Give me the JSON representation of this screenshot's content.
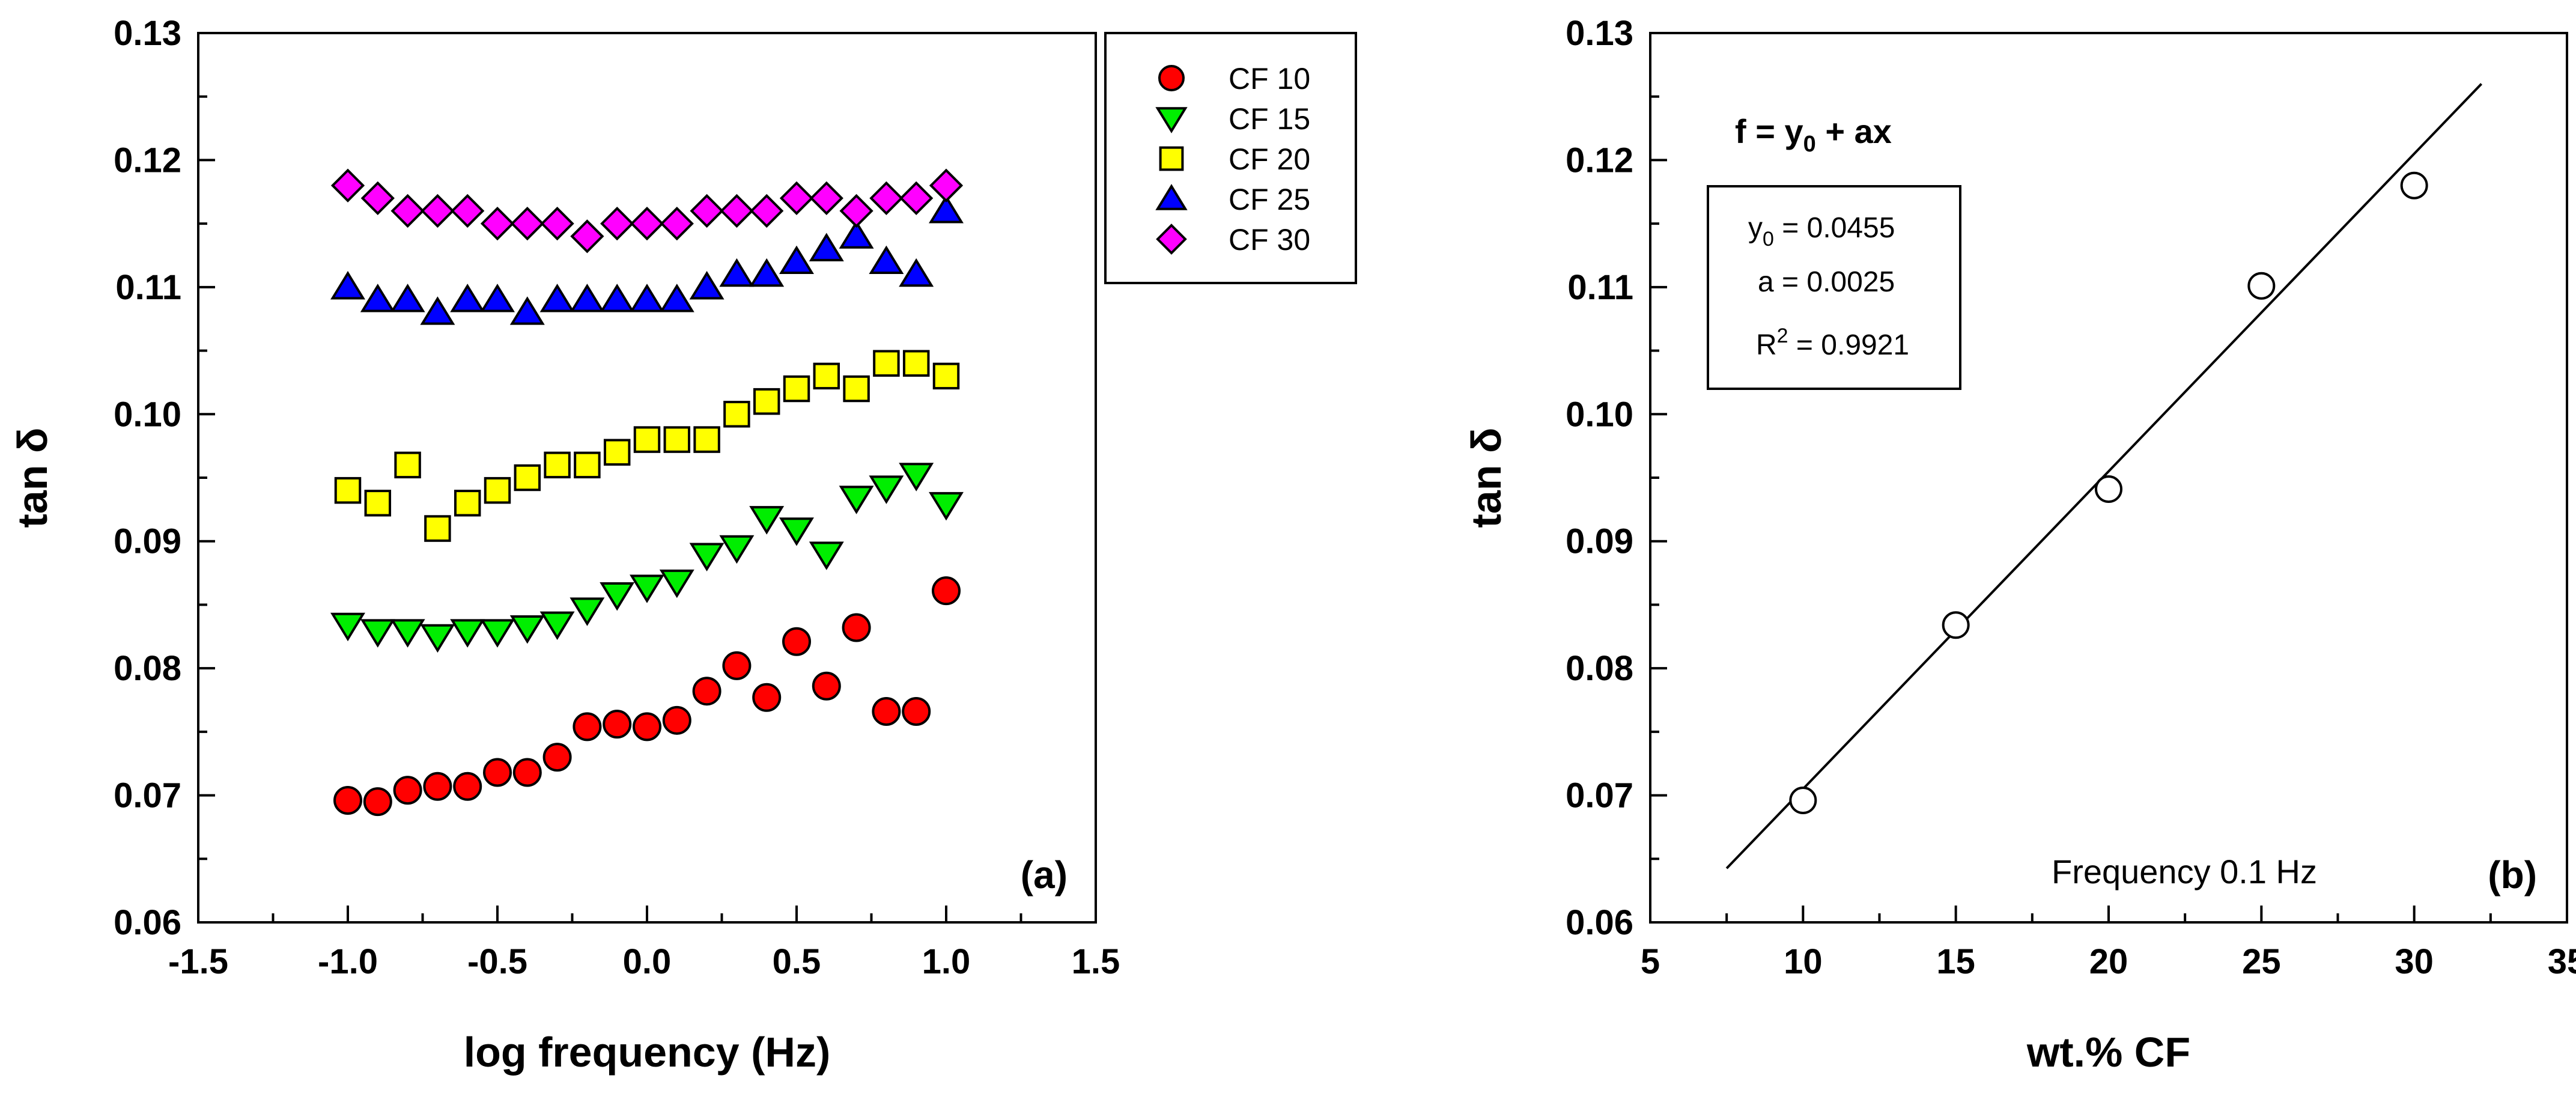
{
  "chart_data": [
    {
      "type": "scatter",
      "panel_label": "(a)",
      "xlabel": "log frequency (Hz)",
      "ylabel": "tan δ",
      "xlim": [
        -1.5,
        1.5
      ],
      "ylim": [
        0.06,
        0.13
      ],
      "xticks": [
        -1.5,
        -1.0,
        -0.5,
        0.0,
        0.5,
        1.0,
        1.5
      ],
      "xtick_labels": [
        "-1.5",
        "-1.0",
        "-0.5",
        "0.0",
        "0.5",
        "1.0",
        "1.5"
      ],
      "yticks": [
        0.06,
        0.07,
        0.08,
        0.09,
        0.1,
        0.11,
        0.12,
        0.13
      ],
      "ytick_labels": [
        "0.06",
        "0.07",
        "0.08",
        "0.09",
        "0.10",
        "0.11",
        "0.12",
        "0.13"
      ],
      "grid": false,
      "legend_position": "outside-top-right",
      "x": [
        -1.0,
        -0.9,
        -0.8,
        -0.7,
        -0.6,
        -0.5,
        -0.4,
        -0.3,
        -0.2,
        -0.1,
        0.0,
        0.1,
        0.2,
        0.3,
        0.4,
        0.5,
        0.6,
        0.7,
        0.8,
        0.9,
        1.0
      ],
      "series": [
        {
          "name": "CF 10",
          "marker": "circle",
          "color": "#ff0000",
          "values": [
            0.0696,
            0.0695,
            0.0704,
            0.0707,
            0.0707,
            0.0718,
            0.0718,
            0.073,
            0.0754,
            0.0756,
            0.0754,
            0.0759,
            0.0782,
            0.0802,
            0.0777,
            0.0821,
            0.0786,
            0.0832,
            0.0766,
            0.0766,
            0.0861
          ]
        },
        {
          "name": "CF 15",
          "marker": "triangle-down",
          "color": "#00ee00",
          "values": [
            0.0834,
            0.0829,
            0.0829,
            0.0825,
            0.0829,
            0.0829,
            0.0832,
            0.0835,
            0.0846,
            0.0858,
            0.0864,
            0.0868,
            0.0889,
            0.0895,
            0.0918,
            0.0909,
            0.089,
            0.0934,
            0.0942,
            0.0952,
            0.0929
          ]
        },
        {
          "name": "CF 20",
          "marker": "square",
          "color": "#ffff00",
          "values": [
            0.094,
            0.093,
            0.096,
            0.091,
            0.093,
            0.094,
            0.095,
            0.096,
            0.096,
            0.097,
            0.098,
            0.098,
            0.098,
            0.1,
            0.101,
            0.102,
            0.103,
            0.102,
            0.104,
            0.104,
            0.103
          ]
        },
        {
          "name": "CF 25",
          "marker": "triangle-up",
          "color": "#0000ff",
          "values": [
            0.11,
            0.109,
            0.109,
            0.108,
            0.109,
            0.109,
            0.108,
            0.109,
            0.109,
            0.109,
            0.109,
            0.109,
            0.11,
            0.111,
            0.111,
            0.112,
            0.113,
            0.114,
            0.112,
            0.111,
            0.116
          ]
        },
        {
          "name": "CF 30",
          "marker": "diamond",
          "color": "#ff00ff",
          "values": [
            0.118,
            0.117,
            0.116,
            0.116,
            0.116,
            0.115,
            0.115,
            0.115,
            0.114,
            0.115,
            0.115,
            0.115,
            0.116,
            0.116,
            0.116,
            0.117,
            0.117,
            0.116,
            0.117,
            0.117,
            0.118
          ]
        }
      ]
    },
    {
      "type": "scatter",
      "panel_label": "(b)",
      "xlabel": "wt.% CF",
      "ylabel": "tan δ",
      "xlim": [
        5,
        35
      ],
      "ylim": [
        0.06,
        0.13
      ],
      "xticks": [
        5,
        10,
        15,
        20,
        25,
        30,
        35
      ],
      "xtick_labels": [
        "5",
        "10",
        "15",
        "20",
        "25",
        "30",
        "35"
      ],
      "yticks": [
        0.06,
        0.07,
        0.08,
        0.09,
        0.1,
        0.11,
        0.12,
        0.13
      ],
      "ytick_labels": [
        "0.06",
        "0.07",
        "0.08",
        "0.09",
        "0.10",
        "0.11",
        "0.12",
        "0.13"
      ],
      "grid": false,
      "series": [
        {
          "name": "Frequency 0.1 Hz",
          "marker": "open-circle",
          "color": "#000000",
          "x": [
            10,
            15,
            20,
            25,
            30
          ],
          "values": [
            0.0696,
            0.0834,
            0.0941,
            0.1101,
            0.118
          ]
        }
      ],
      "fit": {
        "equation": {
          "prefix": "f = y",
          "sub": "0",
          "suffix": " + ax"
        },
        "y0": {
          "label": "y",
          "sub": "0",
          "text": " = 0.0455",
          "value": 0.0455
        },
        "a": {
          "text": "a = 0.0025",
          "value": 0.0025
        },
        "r2": {
          "label": "R",
          "sup": "2",
          "text": " = 0.9921"
        },
        "x_range": [
          7.5,
          32.2
        ]
      },
      "annotation": "Frequency 0.1 Hz"
    }
  ]
}
